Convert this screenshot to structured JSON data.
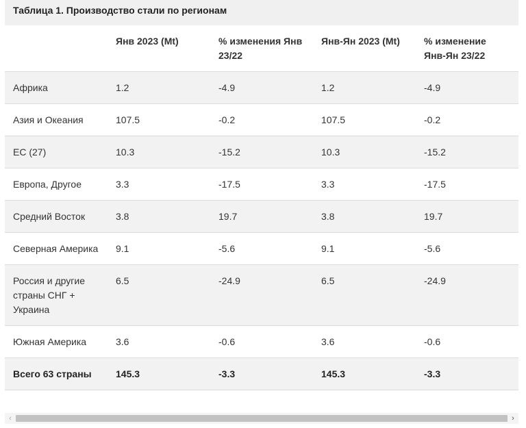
{
  "table": {
    "caption": "Таблица 1. Производство стали по регионам",
    "headers": [
      "",
      "Янв 2023 (Mt)",
      "% изменения Янв 23/22",
      "Янв-Ян 2023 (Mt)",
      "% изменение Янв-Ян 23/22"
    ],
    "rows": [
      [
        "Африка",
        "1.2",
        "-4.9",
        "1.2",
        "-4.9"
      ],
      [
        "Азия и Океания",
        "107.5",
        "-0.2",
        "107.5",
        "-0.2"
      ],
      [
        "ЕС (27)",
        "10.3",
        "-15.2",
        "10.3",
        "-15.2"
      ],
      [
        "Европа, Другое",
        "3.3",
        "-17.5",
        "3.3",
        "-17.5"
      ],
      [
        "Средний Восток",
        "3.8",
        "19.7",
        "3.8",
        "19.7"
      ],
      [
        "Северная Америка",
        "9.1",
        "-5.6",
        "9.1",
        "-5.6"
      ],
      [
        "Россия и другие страны СНГ + Украина",
        "6.5",
        "-24.9",
        "6.5",
        "-24.9"
      ],
      [
        "Южная Америка",
        "3.6",
        "-0.6",
        "3.6",
        "-0.6"
      ]
    ],
    "total": [
      "Всего 63 страны",
      "145.3",
      "-3.3",
      "145.3",
      "-3.3"
    ]
  },
  "scrollbar": {
    "left_arrow": "‹",
    "right_arrow": "›"
  }
}
